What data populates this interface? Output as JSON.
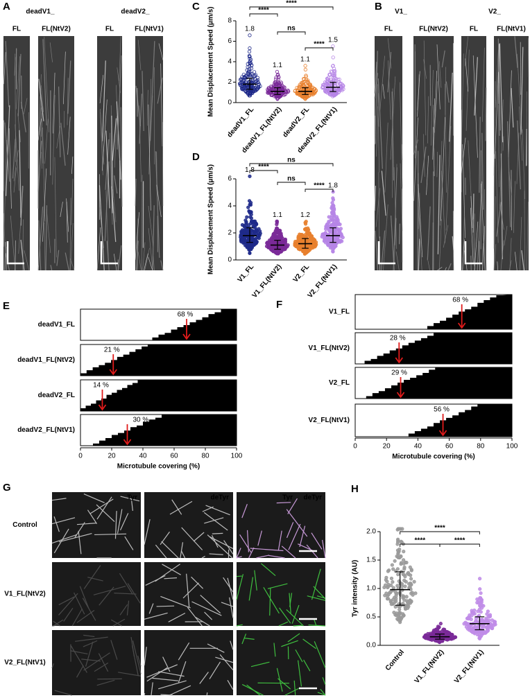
{
  "panel_letters": [
    "A",
    "B",
    "C",
    "D",
    "E",
    "F",
    "G",
    "H"
  ],
  "kymographs": [
    {
      "groups": [
        "deadV1_",
        "deadV2_"
      ],
      "lanes": [
        "FL",
        "FL(NtV2)",
        "FL",
        "FL(NtV1)"
      ]
    },
    {
      "groups": [
        "V1_",
        "V2_"
      ],
      "lanes": [
        "FL",
        "FL(NtV2)",
        "FL",
        "FL(NtV1)"
      ]
    }
  ],
  "microscopy": {
    "columns": [
      "Tyr",
      "deTyr"
    ],
    "merge": [
      "Tyr",
      "deTyr"
    ],
    "rows": [
      "Control",
      "V1_FL(NtV2)",
      "V2_FL(NtV1)"
    ]
  },
  "chart_data": [
    {
      "type": "dotplot",
      "ylabel": "Mean Displacement Speed (μm/s)",
      "categories": [
        "deadV1_FL",
        "deadV1_FL(NtV2)",
        "deadV2_FL",
        "deadV2_FL(NtV1)"
      ],
      "colors": [
        "#1f2a8a",
        "#7a2a98",
        "#e8802e",
        "#b685e6"
      ],
      "hollow": true,
      "value_labels_shown": true,
      "values": [
        1.8,
        1.1,
        1.1,
        1.5
      ],
      "ylim": [
        0,
        8
      ],
      "yticks": [
        0,
        2,
        4,
        6,
        8
      ],
      "comparisons": [
        "****",
        "ns",
        "****",
        "****"
      ]
    },
    {
      "type": "dotplot",
      "ylabel": "Mean Displacement Speed (μm/s)",
      "categories": [
        "V1_FL",
        "V1_FL(NtV2)",
        "V2_FL",
        "V2_FL(NtV1)"
      ],
      "colors": [
        "#1f2a8a",
        "#7a2a98",
        "#e8802e",
        "#b685e6"
      ],
      "hollow": false,
      "value_labels_shown": true,
      "values": [
        1.8,
        1.1,
        1.2,
        1.8
      ],
      "ylim": [
        0,
        6
      ],
      "yticks": [
        0,
        2,
        4,
        6
      ],
      "comparisons": [
        "****",
        "ns",
        "ns",
        "****"
      ]
    },
    {
      "type": "coverage",
      "xlabel": "Microtubule covering (%)",
      "categories": [
        "deadV1_FL",
        "deadV1_FL(NtV2)",
        "deadV2_FL",
        "deadV2_FL(NtV1)"
      ],
      "values": [
        68,
        21,
        14,
        30
      ],
      "value_labels": [
        "68 %",
        "21 %",
        "14 %",
        "30 %"
      ],
      "color": "#e01b1b",
      "xlim": [
        0,
        100
      ],
      "xticks": [
        0,
        20,
        40,
        60,
        80,
        100
      ]
    },
    {
      "type": "coverage",
      "xlabel": "Microtubule covering (%)",
      "categories": [
        "V1_FL",
        "V1_FL(NtV2)",
        "V2_FL",
        "V2_FL(NtV1)"
      ],
      "values": [
        68,
        28,
        29,
        56
      ],
      "value_labels": [
        "68 %",
        "28 %",
        "29 %",
        "56 %"
      ],
      "color": "#e01b1b",
      "xlim": [
        0,
        100
      ],
      "xticks": [
        0,
        20,
        40,
        60,
        80,
        100
      ]
    },
    {
      "type": "dotplot",
      "ylabel": "Tyr intensity (AU)",
      "categories": [
        "Control",
        "V1_FL(NtV2)",
        "V2_FL(NtV1)"
      ],
      "colors": [
        "#9a9a9a",
        "#7a2a98",
        "#c08ce8"
      ],
      "hollow": false,
      "value_labels_shown": false,
      "values": [
        0.98,
        0.15,
        0.38
      ],
      "ylim": [
        0,
        2
      ],
      "yticks": [
        {
          "value": 0,
          "label": "0.0"
        },
        0.5,
        {
          "value": 1,
          "label": "1.0"
        },
        1.5,
        {
          "value": 2,
          "label": "2.0"
        }
      ],
      "comparisons": [
        "****",
        "****",
        "****"
      ]
    }
  ]
}
